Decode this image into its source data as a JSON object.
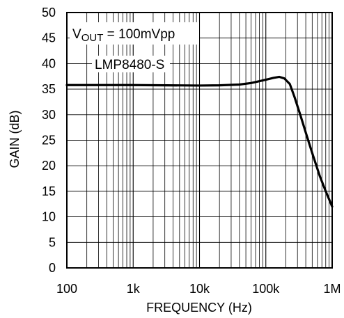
{
  "chart_data": {
    "type": "line",
    "xlabel": "FREQUENCY (Hz)",
    "ylabel": "GAIN (dB)",
    "xscale": "log",
    "xlim": [
      100,
      1000000
    ],
    "ylim": [
      0,
      50
    ],
    "grid": true,
    "x_ticks": [
      {
        "value": 100,
        "label": "100"
      },
      {
        "value": 1000,
        "label": "1k"
      },
      {
        "value": 10000,
        "label": "10k"
      },
      {
        "value": 100000,
        "label": "100k"
      },
      {
        "value": 1000000,
        "label": "1M"
      }
    ],
    "y_ticks": [
      0,
      5,
      10,
      15,
      20,
      25,
      30,
      35,
      40,
      45,
      50
    ],
    "annotations": [
      {
        "id": "vout",
        "prefix": "V",
        "subscript": "OUT",
        "suffix": " = 100mVpp"
      },
      {
        "id": "part",
        "text": "LMP8480-S"
      }
    ],
    "series": [
      {
        "color": "#000000",
        "points": [
          [
            100,
            35.8
          ],
          [
            1000,
            35.8
          ],
          [
            10000,
            35.7
          ],
          [
            20000,
            35.75
          ],
          [
            40000,
            35.9
          ],
          [
            60000,
            36.2
          ],
          [
            90000,
            36.7
          ],
          [
            130000,
            37.2
          ],
          [
            160000,
            37.4
          ],
          [
            190000,
            37.1
          ],
          [
            230000,
            36.0
          ],
          [
            270000,
            33.5
          ],
          [
            330000,
            30.0
          ],
          [
            400000,
            26.5
          ],
          [
            500000,
            22.5
          ],
          [
            650000,
            18.0
          ],
          [
            800000,
            15.0
          ],
          [
            1000000,
            12.0
          ]
        ]
      }
    ]
  }
}
